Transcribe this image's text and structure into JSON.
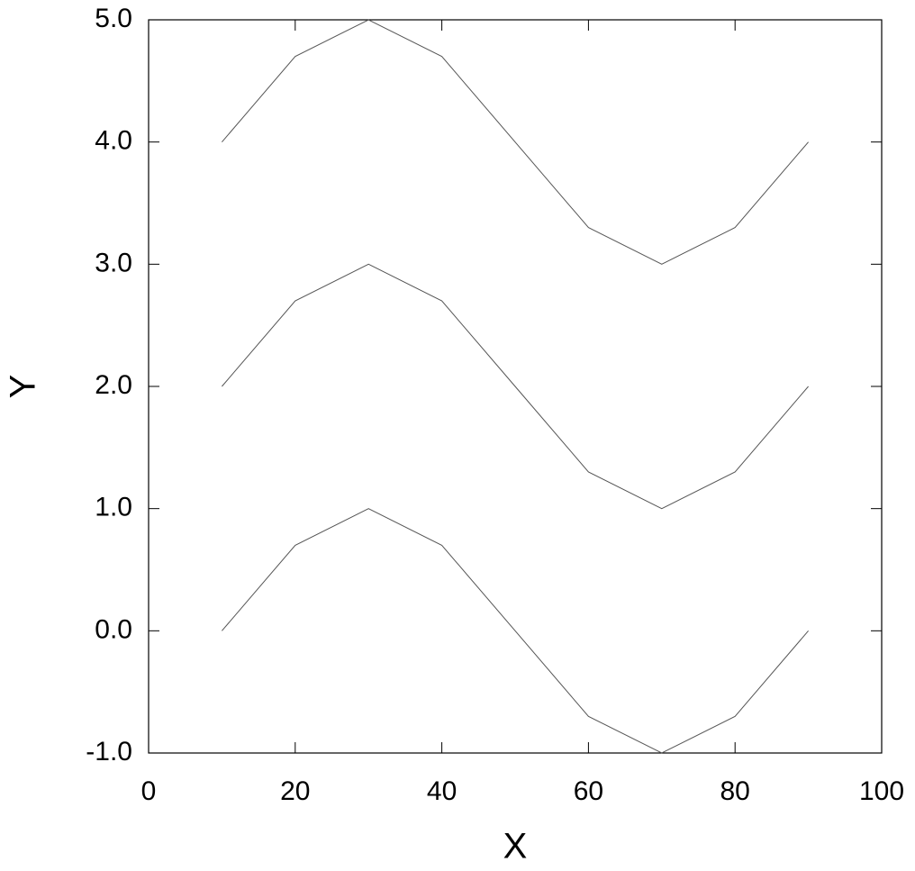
{
  "chart_data": {
    "type": "line",
    "x_label": "X",
    "y_label": "Y",
    "x": [
      10,
      20,
      30,
      40,
      50,
      60,
      70,
      80,
      90
    ],
    "series": [
      {
        "color": "#555555",
        "values": [
          0,
          0.7,
          1,
          0.7,
          0,
          -0.7,
          -1,
          -0.7,
          0
        ]
      },
      {
        "color": "#555555",
        "values": [
          2,
          2.7,
          3,
          2.7,
          2,
          1.3,
          1,
          1.3,
          2
        ]
      },
      {
        "color": "#555555",
        "values": [
          4,
          4.7,
          5,
          4.7,
          4,
          3.3,
          3,
          3.3,
          4
        ]
      }
    ],
    "xlim": [
      0,
      100
    ],
    "xticks": [
      0,
      20,
      40,
      60,
      80,
      100
    ],
    "ylim": [
      -1,
      5
    ],
    "yticks": [
      {
        "value": -1,
        "label": "-1.0"
      },
      {
        "value": 0,
        "label": "0.0"
      },
      {
        "value": 1,
        "label": "1.0"
      },
      {
        "value": 2,
        "label": "2.0"
      },
      {
        "value": 3,
        "label": "3.0"
      },
      {
        "value": 4,
        "label": "4.0"
      },
      {
        "value": 5,
        "label": "5.0"
      }
    ]
  }
}
